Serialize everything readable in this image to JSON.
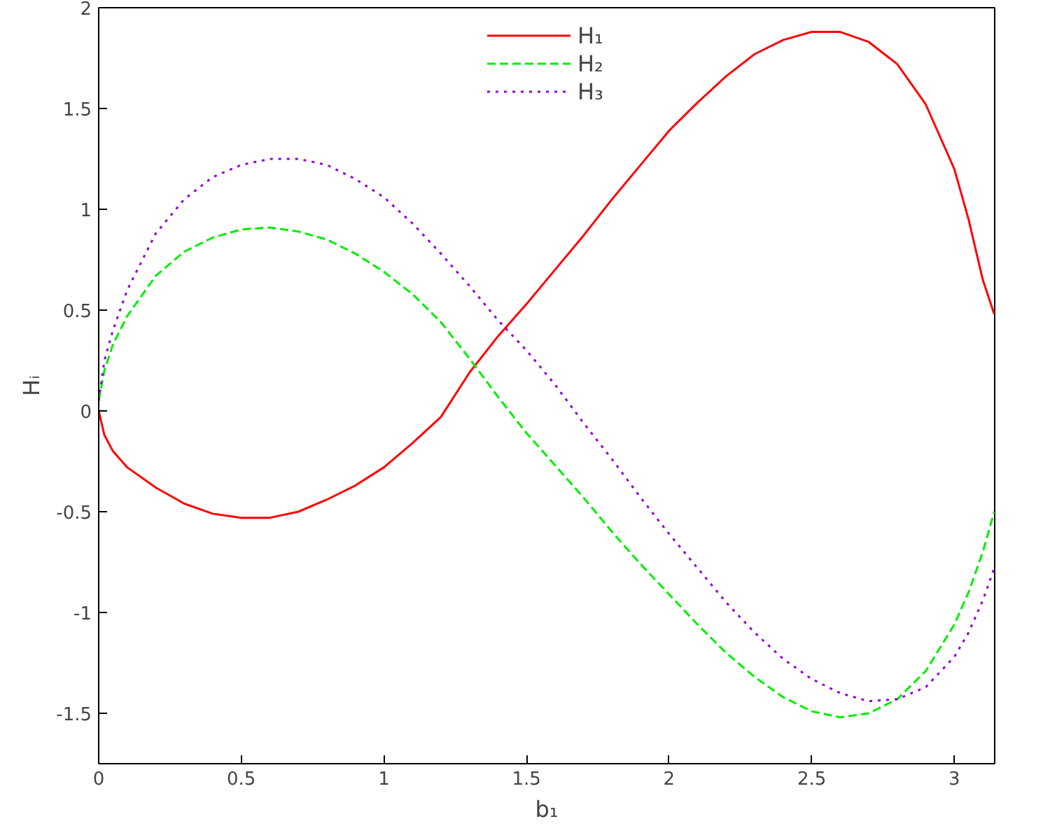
{
  "chart_data": {
    "type": "line",
    "xlabel": "b₁",
    "ylabel": "Hᵢ",
    "x": [
      0,
      0.02,
      0.05,
      0.1,
      0.2,
      0.3,
      0.4,
      0.5,
      0.6,
      0.7,
      0.8,
      0.9,
      1.0,
      1.1,
      1.2,
      1.3,
      1.4,
      1.5,
      1.6,
      1.7,
      1.8,
      1.9,
      2.0,
      2.1,
      2.2,
      2.3,
      2.4,
      2.5,
      2.6,
      2.7,
      2.8,
      2.9,
      3.0,
      3.05,
      3.1,
      3.14
    ],
    "series": [
      {
        "name": "H₁",
        "color": "#ff0000",
        "line_style": "solid",
        "values": [
          0,
          -0.12,
          -0.2,
          -0.28,
          -0.38,
          -0.46,
          -0.51,
          -0.53,
          -0.53,
          -0.5,
          -0.44,
          -0.37,
          -0.28,
          -0.16,
          -0.03,
          0.19,
          0.37,
          0.53,
          0.7,
          0.87,
          1.05,
          1.22,
          1.39,
          1.53,
          1.66,
          1.77,
          1.84,
          1.88,
          1.88,
          1.83,
          1.72,
          1.52,
          1.2,
          0.95,
          0.65,
          0.48
        ]
      },
      {
        "name": "H₂",
        "color": "#00ee00",
        "line_style": "dashed",
        "values": [
          0.05,
          0.2,
          0.33,
          0.47,
          0.67,
          0.79,
          0.86,
          0.9,
          0.91,
          0.89,
          0.85,
          0.78,
          0.69,
          0.58,
          0.44,
          0.26,
          0.07,
          -0.11,
          -0.27,
          -0.43,
          -0.6,
          -0.76,
          -0.91,
          -1.06,
          -1.2,
          -1.32,
          -1.42,
          -1.49,
          -1.52,
          -1.5,
          -1.43,
          -1.29,
          -1.06,
          -0.9,
          -0.7,
          -0.5
        ]
      },
      {
        "name": "H₃",
        "color": "#9400d3",
        "line_style": "dotted",
        "values": [
          0.05,
          0.25,
          0.4,
          0.6,
          0.88,
          1.05,
          1.16,
          1.22,
          1.25,
          1.25,
          1.22,
          1.15,
          1.06,
          0.93,
          0.78,
          0.62,
          0.45,
          0.3,
          0.13,
          -0.06,
          -0.24,
          -0.43,
          -0.61,
          -0.78,
          -0.95,
          -1.1,
          -1.23,
          -1.33,
          -1.4,
          -1.44,
          -1.43,
          -1.37,
          -1.22,
          -1.1,
          -0.94,
          -0.78
        ]
      }
    ],
    "xlim": [
      0,
      3.1416
    ],
    "ylim": [
      -1.75,
      2
    ],
    "xticks": [
      0,
      0.5,
      1,
      1.5,
      2,
      2.5,
      3
    ],
    "yticks": [
      -1.5,
      -1,
      -0.5,
      0,
      0.5,
      1,
      1.5,
      2
    ],
    "grid": false,
    "legend": "top"
  }
}
